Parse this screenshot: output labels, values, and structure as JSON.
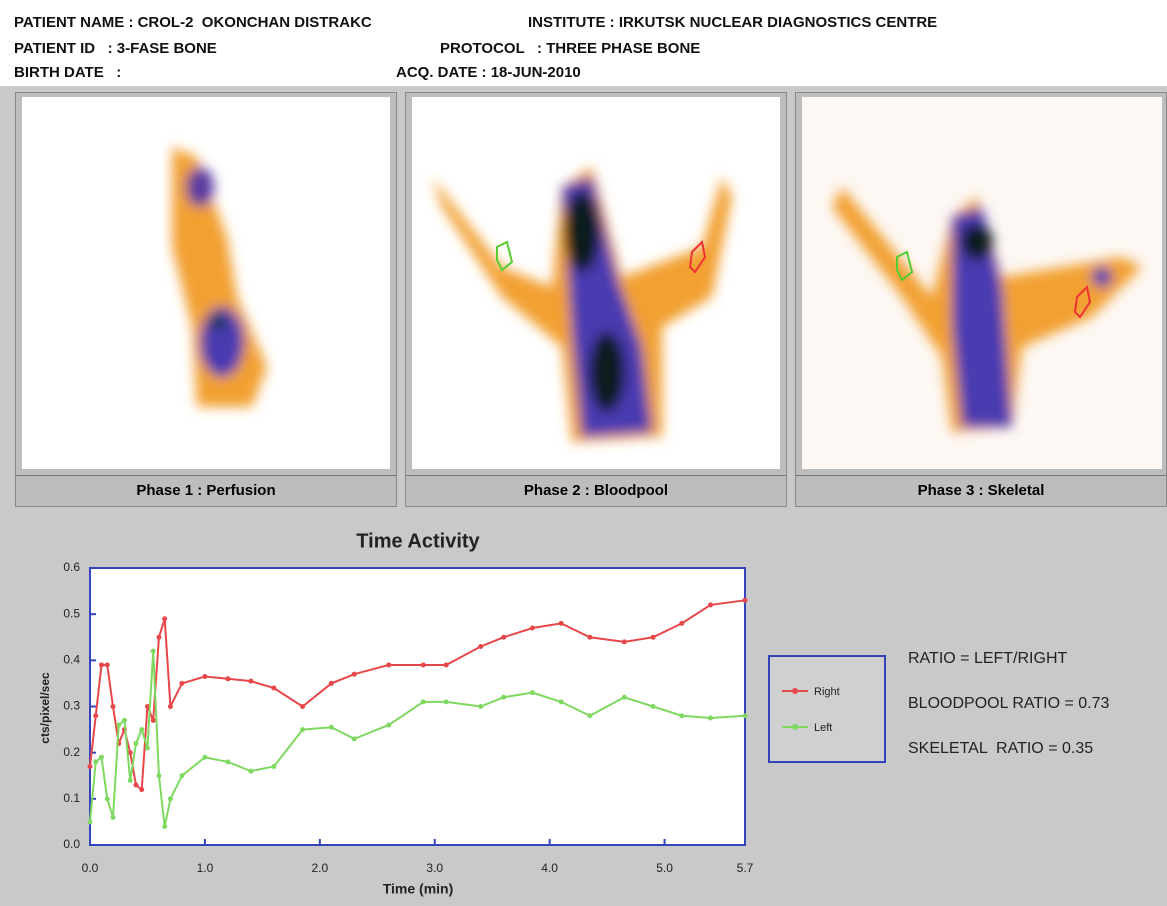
{
  "header": {
    "patient_name": "PATIENT NAME : CROL-2  OKONCHAN DISTRAKC",
    "institute": "INSTITUTE : IRKUTSK NUCLEAR DIAGNOSTICS CENTRE",
    "patient_id": "PATIENT ID   : 3-FASE BONE",
    "protocol": "PROTOCOL   : THREE PHASE BONE",
    "birth_date": "BIRTH DATE   :",
    "acq_date": "ACQ. DATE : 18-JUN-2010"
  },
  "panels": [
    {
      "caption": "Phase 1 : Perfusion"
    },
    {
      "caption": "Phase 2 : Bloodpool"
    },
    {
      "caption": "Phase 3 : Skeletal"
    }
  ],
  "chart_data": {
    "type": "line",
    "title": "Time Activity",
    "x_label": "Time (min)",
    "y_label": "cts/pixel/sec",
    "x": [
      0,
      0.05,
      0.1,
      0.15,
      0.2,
      0.25,
      0.3,
      0.35,
      0.4,
      0.45,
      0.5,
      0.55,
      0.6,
      0.65,
      0.7,
      0.8,
      1.0,
      1.2,
      1.4,
      1.6,
      1.85,
      2.1,
      2.3,
      2.6,
      2.9,
      3.1,
      3.4,
      3.6,
      3.85,
      4.1,
      4.35,
      4.65,
      4.9,
      5.15,
      5.4,
      5.7
    ],
    "series": [
      {
        "name": "Right",
        "color": "#e8474a",
        "values": [
          0.17,
          0.28,
          0.39,
          0.39,
          0.3,
          0.22,
          0.25,
          0.2,
          0.13,
          0.12,
          0.3,
          0.27,
          0.45,
          0.49,
          0.3,
          0.35,
          0.365,
          0.36,
          0.355,
          0.34,
          0.3,
          0.35,
          0.37,
          0.39,
          0.39,
          0.39,
          0.43,
          0.45,
          0.47,
          0.48,
          0.45,
          0.44,
          0.45,
          0.48,
          0.52,
          0.53
        ]
      },
      {
        "name": "Left",
        "color": "#7fd860",
        "values": [
          0.05,
          0.18,
          0.19,
          0.1,
          0.06,
          0.26,
          0.27,
          0.14,
          0.22,
          0.25,
          0.21,
          0.42,
          0.15,
          0.04,
          0.1,
          0.15,
          0.19,
          0.18,
          0.16,
          0.17,
          0.25,
          0.255,
          0.23,
          0.26,
          0.31,
          0.31,
          0.3,
          0.32,
          0.33,
          0.31,
          0.28,
          0.32,
          0.3,
          0.28,
          0.275,
          0.28
        ]
      }
    ],
    "xlim": [
      0,
      5.7
    ],
    "ylim": [
      0,
      0.6
    ],
    "xticks": [
      {
        "value": 0,
        "label": "0.0"
      },
      {
        "value": 1,
        "label": "1.0"
      },
      {
        "value": 2,
        "label": "2.0"
      },
      {
        "value": 3,
        "label": "3.0"
      },
      {
        "value": 4,
        "label": "4.0"
      },
      {
        "value": 5,
        "label": "5.0"
      },
      5.7
    ],
    "yticks": [
      {
        "value": 0,
        "label": "0.0"
      },
      0.1,
      0.2,
      0.3,
      0.4,
      0.5,
      0.6
    ],
    "grid": false
  },
  "ratios": [
    "RATIO = LEFT/RIGHT",
    "BLOODPOOL RATIO = 0.73",
    "SKELETAL  RATIO = 0.35"
  ]
}
